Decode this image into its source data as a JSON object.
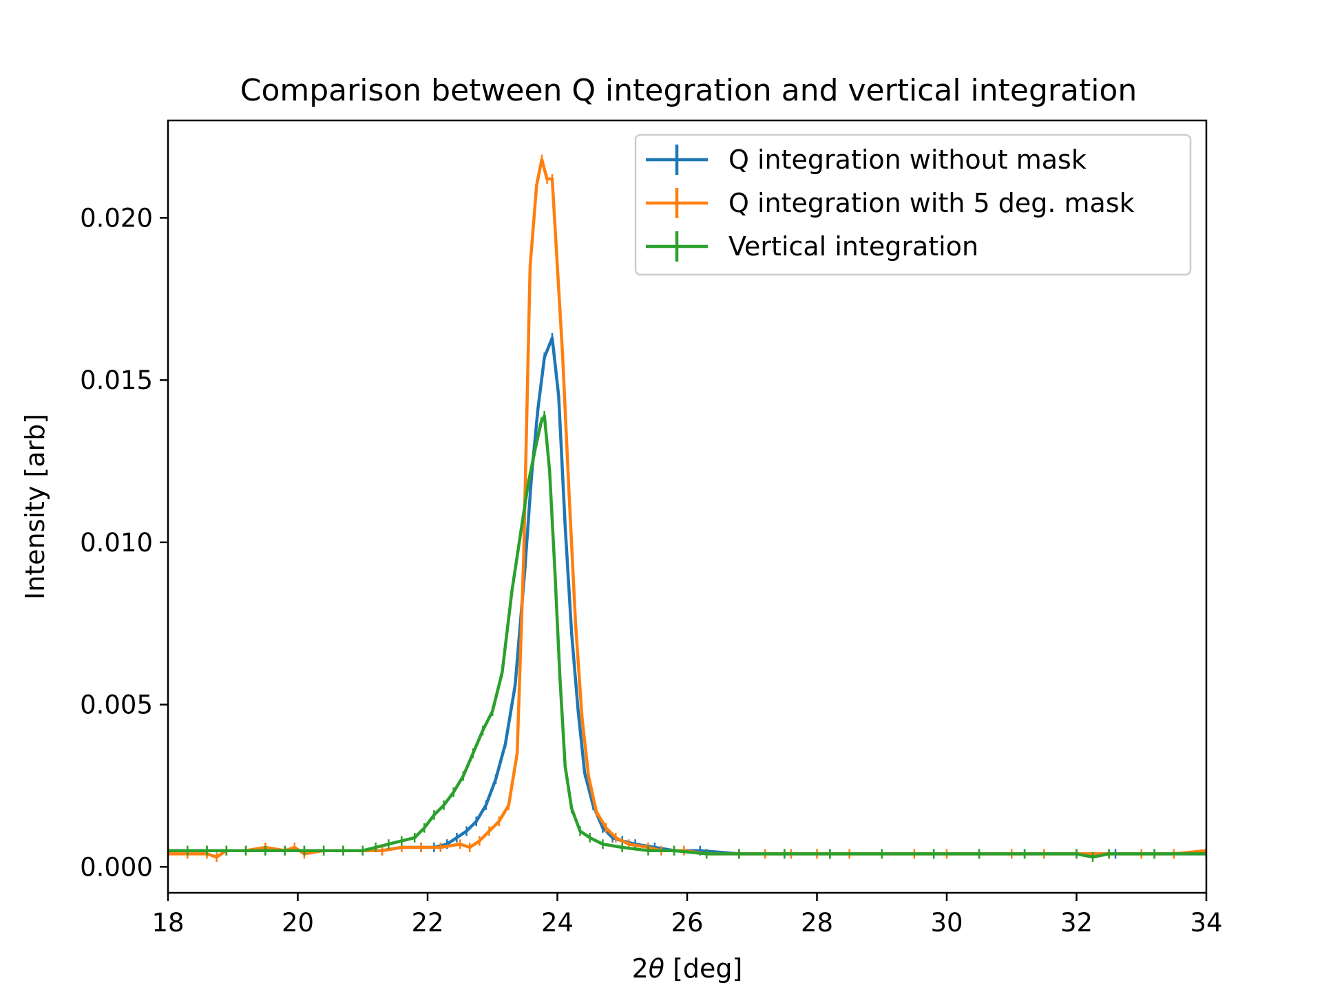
{
  "chart_data": {
    "type": "line",
    "title": "Comparison between Q integration and vertical integration",
    "xlabel_prefix": "2",
    "xlabel_symbol": "θ",
    "xlabel_suffix": " [deg]",
    "ylabel": "Intensity [arb]",
    "xlim": [
      18,
      34
    ],
    "ylim": [
      -0.0008,
      0.023
    ],
    "xticks": [
      18,
      20,
      22,
      24,
      26,
      28,
      30,
      32,
      34
    ],
    "xtick_labels": [
      "18",
      "20",
      "22",
      "24",
      "26",
      "28",
      "30",
      "32",
      "34"
    ],
    "yticks": [
      0.0,
      0.005,
      0.01,
      0.015,
      0.02
    ],
    "ytick_labels": [
      "0.000",
      "0.005",
      "0.010",
      "0.015",
      "0.020"
    ],
    "grid": false,
    "legend_position": "top-right",
    "series": [
      {
        "name": "Q integration without mask",
        "color": "#1f77b4",
        "points": [
          [
            18.0,
            0.0005
          ],
          [
            18.3,
            0.0005
          ],
          [
            18.6,
            0.0005
          ],
          [
            18.9,
            0.0005
          ],
          [
            19.2,
            0.0005
          ],
          [
            19.5,
            0.0005
          ],
          [
            19.8,
            0.0005
          ],
          [
            20.1,
            0.0005
          ],
          [
            20.4,
            0.0005
          ],
          [
            20.7,
            0.0005
          ],
          [
            21.0,
            0.0005
          ],
          [
            21.3,
            0.0005
          ],
          [
            21.6,
            0.0006
          ],
          [
            21.9,
            0.0006
          ],
          [
            22.1,
            0.0006
          ],
          [
            22.3,
            0.0007
          ],
          [
            22.45,
            0.0009
          ],
          [
            22.6,
            0.0011
          ],
          [
            22.75,
            0.0014
          ],
          [
            22.9,
            0.0019
          ],
          [
            23.05,
            0.0027
          ],
          [
            23.2,
            0.0038
          ],
          [
            23.35,
            0.0056
          ],
          [
            23.5,
            0.0092
          ],
          [
            23.6,
            0.012
          ],
          [
            23.7,
            0.0141
          ],
          [
            23.8,
            0.0157
          ],
          [
            23.92,
            0.0163
          ],
          [
            24.02,
            0.0145
          ],
          [
            24.12,
            0.0105
          ],
          [
            24.22,
            0.0072
          ],
          [
            24.32,
            0.0048
          ],
          [
            24.42,
            0.0029
          ],
          [
            24.55,
            0.0019
          ],
          [
            24.7,
            0.0012
          ],
          [
            24.85,
            0.0009
          ],
          [
            25.0,
            0.0008
          ],
          [
            25.2,
            0.0007
          ],
          [
            25.5,
            0.0006
          ],
          [
            25.8,
            0.0005
          ],
          [
            26.2,
            0.0005
          ],
          [
            26.8,
            0.0004
          ],
          [
            27.5,
            0.0004
          ],
          [
            28.2,
            0.0004
          ],
          [
            29.0,
            0.0004
          ],
          [
            29.8,
            0.0004
          ],
          [
            30.5,
            0.0004
          ],
          [
            31.2,
            0.0004
          ],
          [
            32.0,
            0.0004
          ],
          [
            32.6,
            0.0004
          ],
          [
            33.2,
            0.0004
          ],
          [
            34.0,
            0.0004
          ]
        ]
      },
      {
        "name": "Q integration with 5 deg. mask",
        "color": "#ff7f0e",
        "points": [
          [
            18.0,
            0.0004
          ],
          [
            18.3,
            0.0004
          ],
          [
            18.6,
            0.0004
          ],
          [
            18.75,
            0.0003
          ],
          [
            18.9,
            0.0005
          ],
          [
            19.2,
            0.0005
          ],
          [
            19.5,
            0.0006
          ],
          [
            19.8,
            0.0005
          ],
          [
            19.95,
            0.0006
          ],
          [
            20.1,
            0.0004
          ],
          [
            20.4,
            0.0005
          ],
          [
            20.7,
            0.0005
          ],
          [
            21.0,
            0.0005
          ],
          [
            21.3,
            0.0005
          ],
          [
            21.6,
            0.0006
          ],
          [
            21.9,
            0.0006
          ],
          [
            22.2,
            0.0006
          ],
          [
            22.5,
            0.0007
          ],
          [
            22.65,
            0.0006
          ],
          [
            22.8,
            0.0008
          ],
          [
            22.95,
            0.0011
          ],
          [
            23.1,
            0.0014
          ],
          [
            23.25,
            0.0019
          ],
          [
            23.38,
            0.0035
          ],
          [
            23.48,
            0.0095
          ],
          [
            23.58,
            0.0185
          ],
          [
            23.68,
            0.021
          ],
          [
            23.76,
            0.0218
          ],
          [
            23.84,
            0.0212
          ],
          [
            23.92,
            0.0212
          ],
          [
            24.0,
            0.0185
          ],
          [
            24.08,
            0.0158
          ],
          [
            24.18,
            0.0115
          ],
          [
            24.28,
            0.0075
          ],
          [
            24.38,
            0.0046
          ],
          [
            24.48,
            0.0028
          ],
          [
            24.6,
            0.0017
          ],
          [
            24.75,
            0.0012
          ],
          [
            24.9,
            0.0009
          ],
          [
            25.1,
            0.0007
          ],
          [
            25.4,
            0.0006
          ],
          [
            25.6,
            0.0005
          ],
          [
            25.8,
            0.0005
          ],
          [
            25.95,
            0.0005
          ],
          [
            26.3,
            0.0004
          ],
          [
            26.8,
            0.0004
          ],
          [
            27.2,
            0.0004
          ],
          [
            27.6,
            0.0004
          ],
          [
            28.0,
            0.0004
          ],
          [
            28.5,
            0.0004
          ],
          [
            29.0,
            0.0004
          ],
          [
            29.5,
            0.0004
          ],
          [
            30.0,
            0.0004
          ],
          [
            30.5,
            0.0004
          ],
          [
            31.0,
            0.0004
          ],
          [
            31.5,
            0.0004
          ],
          [
            32.0,
            0.0004
          ],
          [
            32.5,
            0.0004
          ],
          [
            33.0,
            0.0004
          ],
          [
            33.5,
            0.0004
          ],
          [
            34.0,
            0.0005
          ]
        ]
      },
      {
        "name": "Vertical integration",
        "color": "#2ca02c",
        "points": [
          [
            18.0,
            0.0005
          ],
          [
            18.3,
            0.0005
          ],
          [
            18.6,
            0.0005
          ],
          [
            18.9,
            0.0005
          ],
          [
            19.2,
            0.0005
          ],
          [
            19.5,
            0.0005
          ],
          [
            19.8,
            0.0005
          ],
          [
            20.1,
            0.0005
          ],
          [
            20.4,
            0.0005
          ],
          [
            20.7,
            0.0005
          ],
          [
            21.0,
            0.0005
          ],
          [
            21.2,
            0.0006
          ],
          [
            21.4,
            0.0007
          ],
          [
            21.6,
            0.0008
          ],
          [
            21.8,
            0.0009
          ],
          [
            21.95,
            0.0012
          ],
          [
            22.1,
            0.0016
          ],
          [
            22.25,
            0.0019
          ],
          [
            22.4,
            0.0023
          ],
          [
            22.55,
            0.0028
          ],
          [
            22.7,
            0.0035
          ],
          [
            22.85,
            0.0042
          ],
          [
            23.0,
            0.0048
          ],
          [
            23.15,
            0.006
          ],
          [
            23.3,
            0.0085
          ],
          [
            23.45,
            0.0105
          ],
          [
            23.55,
            0.0118
          ],
          [
            23.65,
            0.0128
          ],
          [
            23.75,
            0.0137
          ],
          [
            23.8,
            0.0139
          ],
          [
            23.88,
            0.0122
          ],
          [
            23.96,
            0.0092
          ],
          [
            24.04,
            0.0058
          ],
          [
            24.12,
            0.0031
          ],
          [
            24.22,
            0.0018
          ],
          [
            24.35,
            0.0011
          ],
          [
            24.5,
            0.0009
          ],
          [
            24.7,
            0.0007
          ],
          [
            25.0,
            0.0006
          ],
          [
            25.4,
            0.0005
          ],
          [
            25.8,
            0.0005
          ],
          [
            26.3,
            0.0004
          ],
          [
            26.8,
            0.0004
          ],
          [
            27.5,
            0.0004
          ],
          [
            28.2,
            0.0004
          ],
          [
            29.0,
            0.0004
          ],
          [
            29.8,
            0.0004
          ],
          [
            30.5,
            0.0004
          ],
          [
            31.2,
            0.0004
          ],
          [
            32.0,
            0.0004
          ],
          [
            32.25,
            0.0003
          ],
          [
            32.5,
            0.0004
          ],
          [
            33.2,
            0.0004
          ],
          [
            34.0,
            0.0004
          ]
        ]
      }
    ]
  }
}
